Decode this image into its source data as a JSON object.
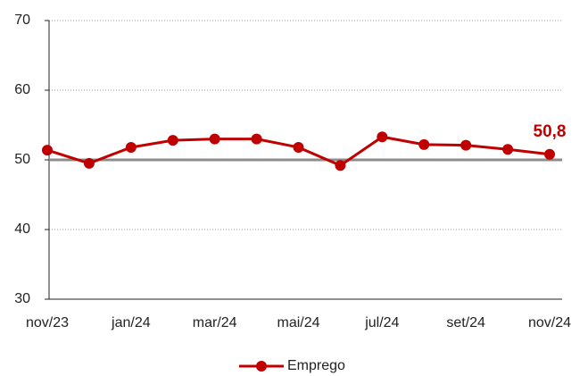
{
  "chart_data": {
    "type": "line",
    "categories": [
      "nov/23",
      null,
      "jan/24",
      null,
      "mar/24",
      null,
      "mai/24",
      null,
      "jul/24",
      null,
      "set/24",
      null,
      "nov/24"
    ],
    "series": [
      {
        "name": "Emprego",
        "color": "#c00000",
        "values": [
          51.4,
          49.5,
          51.8,
          52.8,
          53.0,
          53.0,
          51.8,
          49.2,
          53.3,
          52.2,
          52.1,
          51.5,
          50.8
        ],
        "value_labels": [
          null,
          null,
          null,
          null,
          null,
          null,
          null,
          null,
          null,
          null,
          null,
          null,
          "50,8"
        ]
      }
    ],
    "ylim": [
      30,
      70
    ],
    "yticks": [
      30,
      40,
      50,
      60,
      70
    ],
    "grid": true,
    "reference_line": 50,
    "legend": "bottom"
  }
}
